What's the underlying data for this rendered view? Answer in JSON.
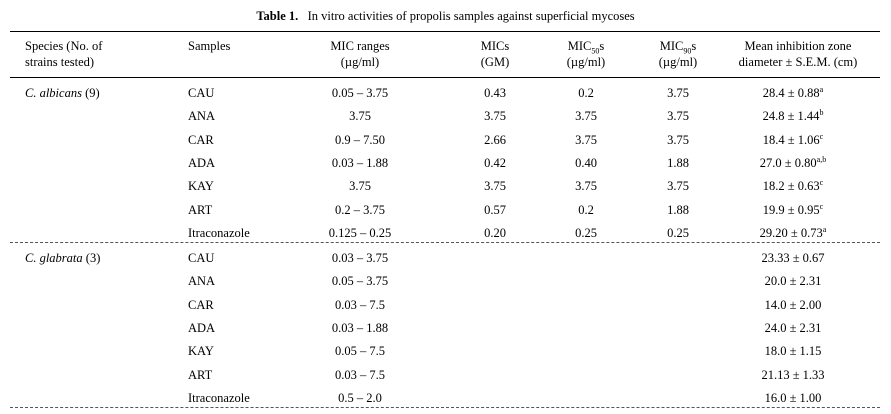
{
  "caption": {
    "label": "Table 1.",
    "title": "In vitro activities of propolis samples against superficial mycoses"
  },
  "headers": {
    "species_line1": "Species (No. of",
    "species_line2": "strains tested)",
    "samples": "Samples",
    "range_line1": "MIC ranges",
    "range_line2": "(µg/ml)",
    "gm_line1": "MICs",
    "gm_line2": "(GM)",
    "mic50_pre": "MIC",
    "mic50_sub": "50",
    "mic50_post": "s",
    "mic50_line2": "(µg/ml)",
    "mic90_pre": "MIC",
    "mic90_sub": "90",
    "mic90_post": "s",
    "mic90_line2": "(µg/ml)",
    "zone_line1": "Mean inhibition zone",
    "zone_line2": "diameter ± S.E.M. (cm)"
  },
  "groups": [
    {
      "species_name": "C. albicans",
      "species_count": " (9)",
      "rows": [
        {
          "sample": "CAU",
          "range": "0.05 – 3.75",
          "gm": "0.43",
          "mic50": "0.2",
          "mic90": "3.75",
          "zone": "28.4 ± 0.88",
          "sup": "a"
        },
        {
          "sample": "ANA",
          "range": "3.75",
          "gm": "3.75",
          "mic50": "3.75",
          "mic90": "3.75",
          "zone": "24.8 ± 1.44",
          "sup": "b"
        },
        {
          "sample": "CAR",
          "range": "0.9 – 7.50",
          "gm": "2.66",
          "mic50": "3.75",
          "mic90": "3.75",
          "zone": "18.4 ± 1.06",
          "sup": "c"
        },
        {
          "sample": "ADA",
          "range": "0.03 – 1.88",
          "gm": "0.42",
          "mic50": "0.40",
          "mic90": "1.88",
          "zone": "27.0 ± 0.80",
          "sup": "a,b"
        },
        {
          "sample": "KAY",
          "range": "3.75",
          "gm": "3.75",
          "mic50": "3.75",
          "mic90": "3.75",
          "zone": "18.2 ± 0.63",
          "sup": "c"
        },
        {
          "sample": "ART",
          "range": "0.2 – 3.75",
          "gm": "0.57",
          "mic50": "0.2",
          "mic90": "1.88",
          "zone": "19.9 ± 0.95",
          "sup": "c"
        },
        {
          "sample": "Itraconazole",
          "range": "0.125 – 0.25",
          "gm": "0.20",
          "mic50": "0.25",
          "mic90": "0.25",
          "zone": "29.20 ± 0.73",
          "sup": "a"
        }
      ]
    },
    {
      "species_name": "C. glabrata",
      "species_count": " (3)",
      "rows": [
        {
          "sample": "CAU",
          "range": "0.03 – 3.75",
          "gm": "",
          "mic50": "",
          "mic90": "",
          "zone": "23.33 ± 0.67",
          "sup": ""
        },
        {
          "sample": "ANA",
          "range": "0.05 – 3.75",
          "gm": "",
          "mic50": "",
          "mic90": "",
          "zone": "20.0 ± 2.31",
          "sup": ""
        },
        {
          "sample": "CAR",
          "range": "0.03 – 7.5",
          "gm": "",
          "mic50": "",
          "mic90": "",
          "zone": "14.0 ± 2.00",
          "sup": ""
        },
        {
          "sample": "ADA",
          "range": "0.03 – 1.88",
          "gm": "",
          "mic50": "",
          "mic90": "",
          "zone": "24.0 ± 2.31",
          "sup": ""
        },
        {
          "sample": "KAY",
          "range": "0.05 – 7.5",
          "gm": "",
          "mic50": "",
          "mic90": "",
          "zone": "18.0 ± 1.15",
          "sup": ""
        },
        {
          "sample": "ART",
          "range": "0.03 – 7.5",
          "gm": "",
          "mic50": "",
          "mic90": "",
          "zone": "21.13 ± 1.33",
          "sup": ""
        },
        {
          "sample": "Itraconazole",
          "range": "0.5 – 2.0",
          "gm": "",
          "mic50": "",
          "mic90": "",
          "zone": "16.0 ± 1.00",
          "sup": ""
        }
      ]
    }
  ]
}
